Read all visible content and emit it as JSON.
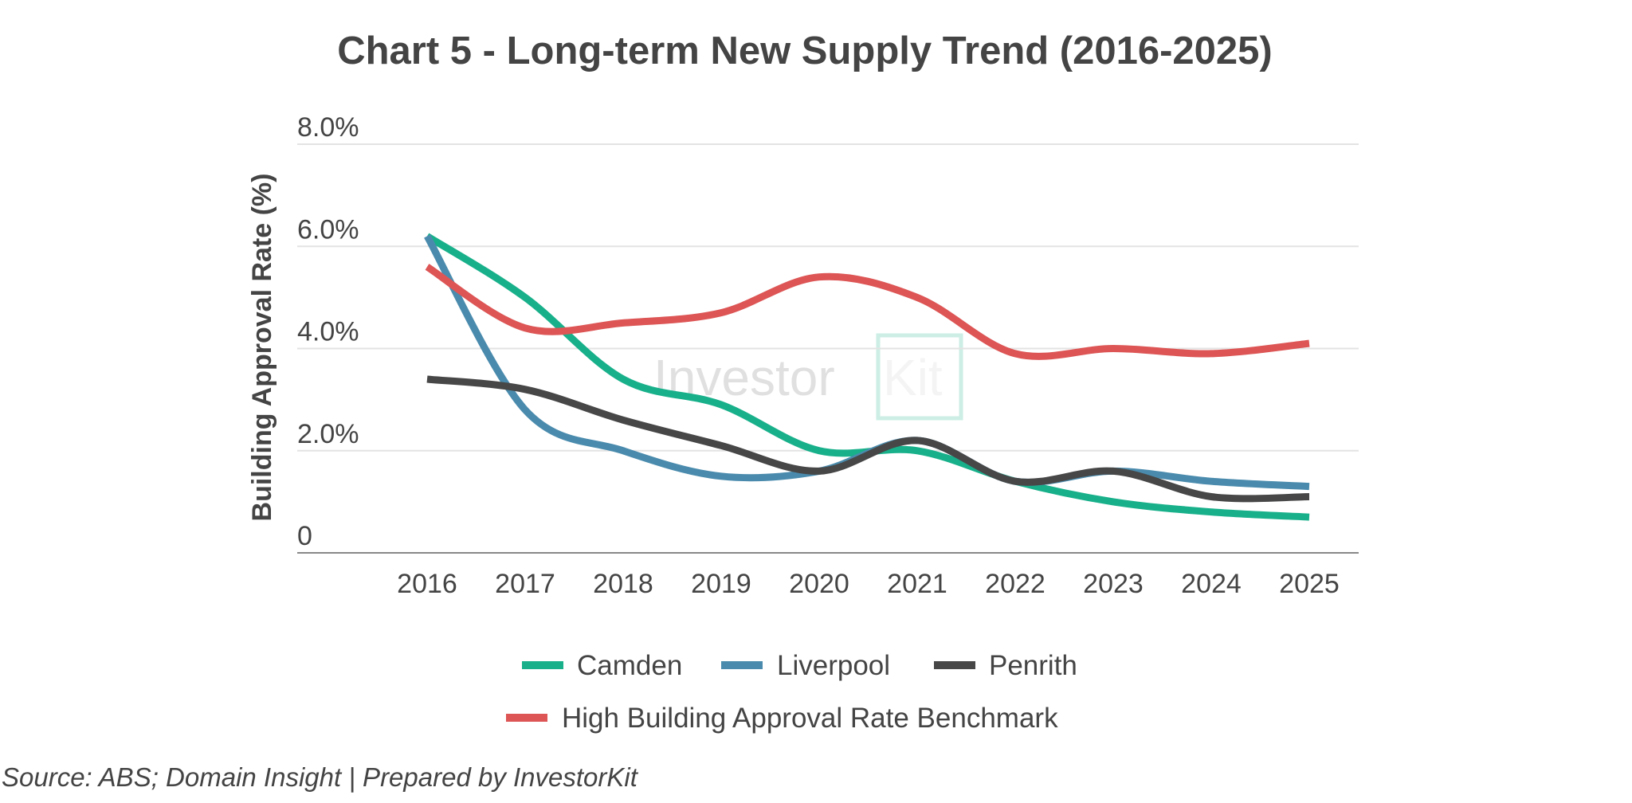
{
  "chart_data": {
    "type": "line",
    "title": "Chart 5 - Long-term New Supply Trend (2016-2025)",
    "xlabel": "",
    "ylabel": "Building Approval Rate (%)",
    "ylim": [
      0,
      8
    ],
    "yticks": [
      {
        "value": 0,
        "label": "0"
      },
      {
        "value": 2,
        "label": "2.0%"
      },
      {
        "value": 4,
        "label": "4.0%"
      },
      {
        "value": 6,
        "label": "6.0%"
      },
      {
        "value": 8,
        "label": "8.0%"
      }
    ],
    "categories": [
      "2016",
      "2017",
      "2018",
      "2019",
      "2020",
      "2021",
      "2022",
      "2023",
      "2024",
      "2025"
    ],
    "grid": true,
    "legend_position": "bottom",
    "series": [
      {
        "name": "Camden",
        "color": "#18b08a",
        "values": [
          6.2,
          5.0,
          3.4,
          2.9,
          2.0,
          2.0,
          1.4,
          1.0,
          0.8,
          0.7
        ]
      },
      {
        "name": "Liverpool",
        "color": "#4a8bad",
        "values": [
          6.2,
          2.8,
          2.0,
          1.5,
          1.6,
          2.2,
          1.4,
          1.6,
          1.4,
          1.3
        ]
      },
      {
        "name": "Penrith",
        "color": "#474747",
        "values": [
          3.4,
          3.2,
          2.6,
          2.1,
          1.6,
          2.2,
          1.4,
          1.6,
          1.1,
          1.1
        ]
      },
      {
        "name": "High Building Approval Rate Benchmark",
        "color": "#dd5555",
        "values": [
          5.6,
          4.4,
          4.5,
          4.7,
          5.4,
          5.0,
          3.9,
          4.0,
          3.9,
          4.1
        ]
      }
    ],
    "annotations": [
      {
        "type": "watermark",
        "text": "Investor",
        "text_accent": "Kit",
        "accent_color": "#18b08a"
      }
    ]
  },
  "footer": {
    "source": "Source: ABS; Domain Insight | Prepared by InvestorKit"
  }
}
